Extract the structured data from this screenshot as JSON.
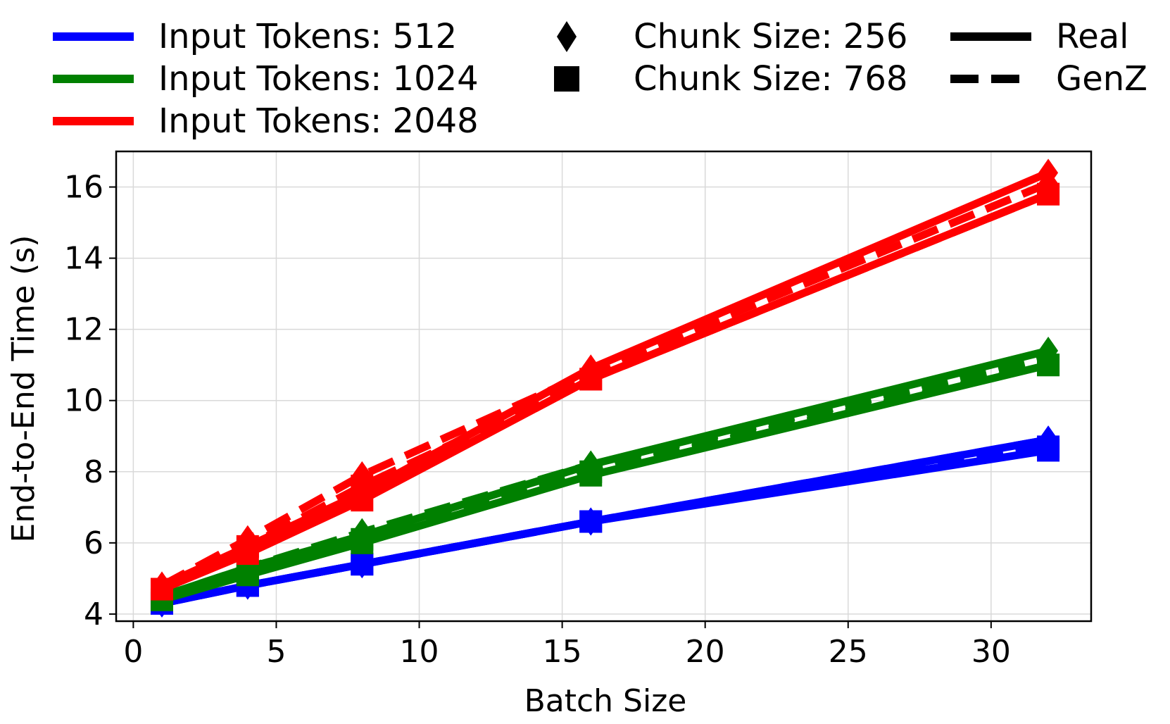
{
  "chart_data": {
    "type": "line",
    "xlabel": "Batch Size",
    "ylabel": "End-to-End Time (s)",
    "xlim": [
      -0.6,
      33.5
    ],
    "ylim": [
      3.8,
      17.0
    ],
    "xticks": [
      0,
      5,
      10,
      15,
      20,
      25,
      30
    ],
    "yticks": [
      4,
      6,
      8,
      10,
      12,
      14,
      16
    ],
    "grid": true,
    "legend_position": "top",
    "x": [
      1,
      4,
      8,
      16,
      32
    ],
    "series": [
      {
        "input_tokens": "512",
        "chunk": "256",
        "mode": "Real",
        "color": "#0000ff",
        "marker": "diamond",
        "values": [
          4.3,
          4.8,
          5.4,
          6.6,
          8.9
        ]
      },
      {
        "input_tokens": "512",
        "chunk": "768",
        "mode": "Real",
        "color": "#0000ff",
        "marker": "square",
        "values": [
          4.3,
          4.8,
          5.4,
          6.6,
          8.6
        ]
      },
      {
        "input_tokens": "512",
        "chunk": "256",
        "mode": "GenZ",
        "color": "#0000ff",
        "marker": "diamond",
        "values": [
          4.3,
          4.8,
          5.4,
          6.6,
          8.9
        ]
      },
      {
        "input_tokens": "512",
        "chunk": "768",
        "mode": "GenZ",
        "color": "#0000ff",
        "marker": "square",
        "values": [
          4.3,
          4.8,
          5.4,
          6.6,
          8.7
        ]
      },
      {
        "input_tokens": "1024",
        "chunk": "256",
        "mode": "Real",
        "color": "#008000",
        "marker": "diamond",
        "values": [
          4.5,
          5.3,
          6.2,
          8.2,
          11.4
        ]
      },
      {
        "input_tokens": "1024",
        "chunk": "768",
        "mode": "Real",
        "color": "#008000",
        "marker": "square",
        "values": [
          4.4,
          5.1,
          6.0,
          7.9,
          11.0
        ]
      },
      {
        "input_tokens": "1024",
        "chunk": "256",
        "mode": "GenZ",
        "color": "#008000",
        "marker": "diamond",
        "values": [
          4.5,
          5.3,
          6.3,
          8.2,
          11.2
        ]
      },
      {
        "input_tokens": "1024",
        "chunk": "768",
        "mode": "GenZ",
        "color": "#008000",
        "marker": "square",
        "values": [
          4.4,
          5.2,
          6.1,
          8.0,
          11.0
        ]
      },
      {
        "input_tokens": "2048",
        "chunk": "256",
        "mode": "Real",
        "color": "#ff0000",
        "marker": "diamond",
        "values": [
          4.8,
          5.9,
          7.4,
          10.9,
          16.4
        ]
      },
      {
        "input_tokens": "2048",
        "chunk": "768",
        "mode": "Real",
        "color": "#ff0000",
        "marker": "square",
        "values": [
          4.7,
          5.7,
          7.2,
          10.6,
          15.8
        ]
      },
      {
        "input_tokens": "2048",
        "chunk": "256",
        "mode": "GenZ",
        "color": "#ff0000",
        "marker": "diamond",
        "values": [
          4.8,
          6.1,
          7.9,
          10.8,
          16.1
        ]
      },
      {
        "input_tokens": "2048",
        "chunk": "768",
        "mode": "GenZ",
        "color": "#ff0000",
        "marker": "square",
        "values": [
          4.7,
          5.9,
          7.6,
          10.6,
          15.8
        ]
      }
    ],
    "legend": {
      "colors": [
        {
          "label": "Input Tokens: 512",
          "color": "#0000ff"
        },
        {
          "label": "Input Tokens: 1024",
          "color": "#008000"
        },
        {
          "label": "Input Tokens: 2048",
          "color": "#ff0000"
        }
      ],
      "markers": [
        {
          "label": "Chunk Size: 256",
          "marker": "diamond"
        },
        {
          "label": "Chunk Size: 768",
          "marker": "square"
        }
      ],
      "styles": [
        {
          "label": "Real",
          "dash": "solid"
        },
        {
          "label": "GenZ",
          "dash": "dashed"
        }
      ]
    }
  }
}
